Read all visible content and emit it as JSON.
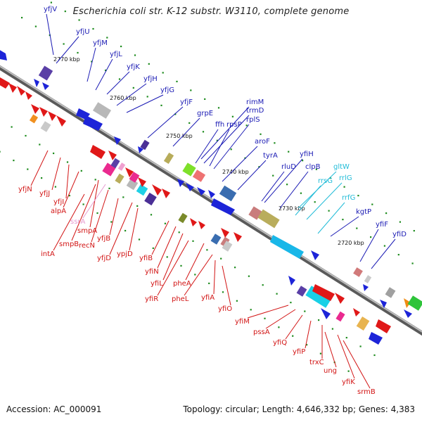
{
  "title": "Escherichia coli str. K-12 substr. W3110, complete genome",
  "accession": "Accession: AC_000091",
  "topology": "Topology: circular; Length: 4,646,332 bp; Genes: 4,383",
  "colors": {
    "forward_label": "#1a1ab4",
    "reverse_label": "#d21414",
    "rna_label": "#22bcd8",
    "pseudo_label": "#e79ad0",
    "axis": "#777777",
    "tick": "#1e8c1e"
  },
  "kbp_markers": [
    "2770 kbp",
    "2760 kbp",
    "2750 kbp",
    "2740 kbp",
    "2730 kbp",
    "2720 kbp"
  ],
  "forward_genes": [
    "yfjV",
    "yfjU",
    "yfjM",
    "yfjL",
    "yfjK",
    "yfjH",
    "yfjG",
    "yfjF",
    "grpE",
    "rimM",
    "trmD",
    "ffh",
    "rpsP",
    "rplS",
    "aroF",
    "tyrA",
    "yfiH",
    "rluD",
    "clpB",
    "kgtP",
    "yfiF",
    "yfiD"
  ],
  "rna_genes": [
    "gltW",
    "rrsG",
    "rrlG",
    "rrfG"
  ],
  "reverse_genes": [
    "yfjN",
    "yfjJ",
    "yfjI",
    "alpA",
    "intA",
    "smpB",
    "smpA",
    "recN",
    "yfjB",
    "yfjD",
    "ypjD",
    "yfiB",
    "yfiN",
    "yfiL",
    "yfiR",
    "pheA",
    "pheL",
    "yfiA",
    "yfiO",
    "yfiM",
    "pssA",
    "yfiQ",
    "yfiP",
    "trxC",
    "ung",
    "yfiK",
    "srmB"
  ],
  "pseudo_genes": [
    "ssrA"
  ]
}
